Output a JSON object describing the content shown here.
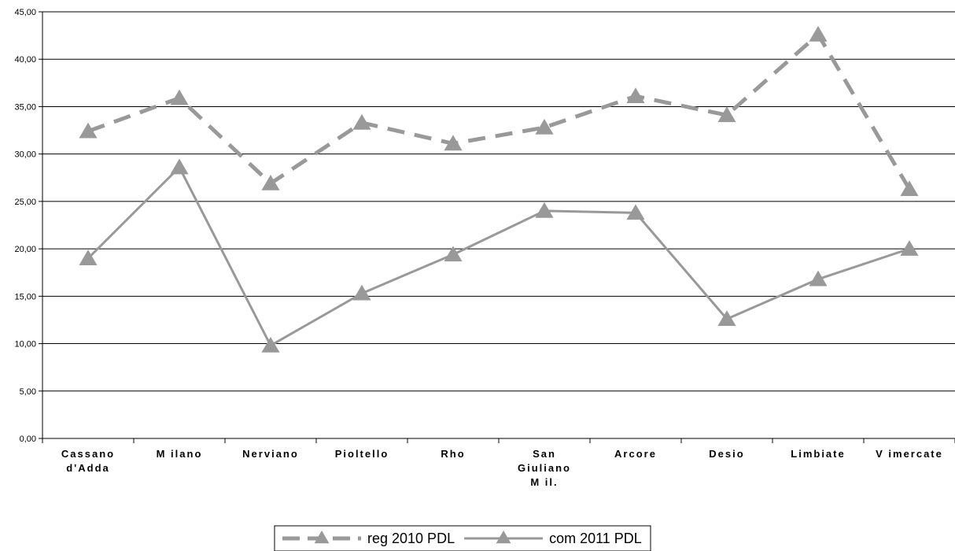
{
  "chart_data": {
    "type": "line",
    "categories": [
      [
        "Cassano",
        "d'Adda"
      ],
      [
        "M ilano"
      ],
      [
        "Nerviano"
      ],
      [
        "Pioltello"
      ],
      [
        "Rho"
      ],
      [
        "San",
        "Giuliano",
        "M il."
      ],
      [
        "Arcore"
      ],
      [
        "Desio"
      ],
      [
        "Limbiate"
      ],
      [
        "V imercate"
      ]
    ],
    "series": [
      {
        "name": "reg 2010 PDL",
        "style": "dashed",
        "color": "#999999",
        "values": [
          32.4,
          35.9,
          26.9,
          33.3,
          31.1,
          32.8,
          36.1,
          34.1,
          42.6,
          26.3
        ]
      },
      {
        "name": "com 2011 PDL",
        "style": "solid",
        "color": "#999999",
        "values": [
          19.0,
          28.6,
          9.8,
          15.3,
          19.4,
          24.0,
          23.8,
          12.6,
          16.8,
          20.0
        ]
      }
    ],
    "ylim": [
      0,
      45
    ],
    "yticks": [
      "0,00",
      "5,00",
      "10,00",
      "15,00",
      "20,00",
      "25,00",
      "30,00",
      "35,00",
      "40,00",
      "45,00"
    ],
    "grid": true,
    "legend_position": "bottom-center",
    "xlabel": "",
    "ylabel": "",
    "title": ""
  }
}
